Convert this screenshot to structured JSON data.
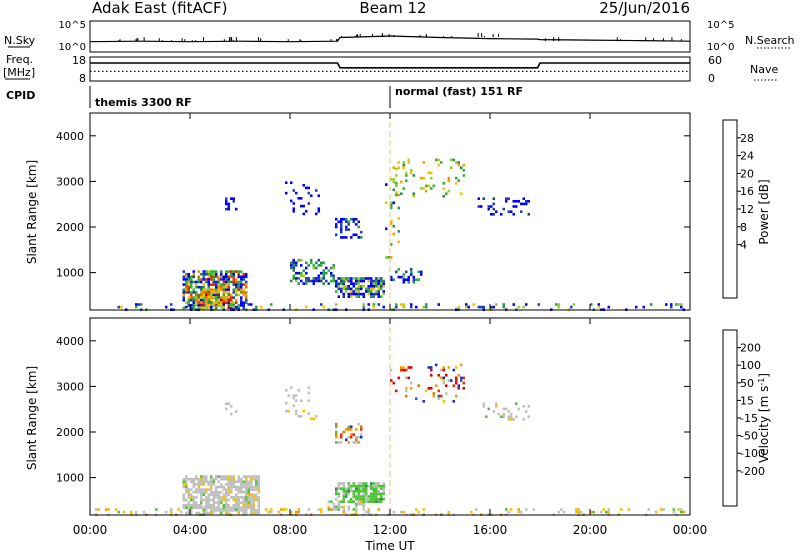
{
  "header": {
    "station": "Adak East (fitACF)",
    "beam": "Beam 12",
    "date": "25/Jun/2016"
  },
  "status_panels": {
    "nsky_label": "N.Sky",
    "nsky_ticks": [
      "10^5",
      "10^0"
    ],
    "nsearch_label": "N.Search",
    "nsearch_ticks": [
      "10^5",
      "10^0"
    ],
    "freq_label_line1": "Freq.",
    "freq_label_line2": "[MHz]",
    "freq_ticks": [
      "18",
      "8"
    ],
    "nave_label": "Nave",
    "nave_ticks": [
      "60",
      "0"
    ],
    "cpid_label": "CPID",
    "cpid_segments": [
      {
        "start_hour": 0,
        "text": "themis 3300 RF"
      },
      {
        "start_hour": 12,
        "text": "normal (fast) 151 RF"
      }
    ]
  },
  "time_axis": {
    "label": "Time UT",
    "ticks": [
      "00:00",
      "04:00",
      "08:00",
      "12:00",
      "16:00",
      "20:00",
      "00:00"
    ]
  },
  "power_colorbar": {
    "label": "Power [dB]",
    "ticks": [
      "28",
      "24",
      "20",
      "16",
      "12",
      "8",
      "4"
    ],
    "colors": [
      "#0000ff",
      "#1f3fa8",
      "#2e8b57",
      "#2db52d",
      "#99cc33",
      "#f2c200",
      "#f59b00",
      "#f06400",
      "#e03000",
      "#cc0000"
    ]
  },
  "velocity_colorbar": {
    "label": "Velocity [m s^-1]",
    "ticks": [
      "200",
      "100",
      "50",
      "15",
      "-15",
      "-50",
      "-100",
      "-200"
    ],
    "colors": [
      "#1030c0",
      "#2060b0",
      "#2e8b57",
      "#4fc43a",
      "#c0c0c0",
      "#f2c200",
      "#f59b00",
      "#f07000",
      "#e03000",
      "#e00000"
    ]
  },
  "chart_data": [
    {
      "type": "line",
      "title": "Adak East (fitACF) Beam 12 25/Jun/2016",
      "ylabel": "N.Sky",
      "ylim_label": [
        "10^0",
        "10^5"
      ],
      "x": [
        0,
        2,
        4,
        6,
        8,
        9.9,
        10,
        12,
        14,
        16,
        17.9,
        18,
        20,
        22,
        24
      ],
      "series": [
        {
          "name": "N.Sky",
          "values": [
            1.6,
            1.7,
            1.6,
            1.7,
            1.6,
            1.7,
            2.4,
            2.7,
            2.4,
            2.2,
            2.1,
            2.0,
            1.9,
            1.8,
            1.7
          ]
        }
      ]
    },
    {
      "type": "line",
      "ylabel": "Freq. [MHz]",
      "ylim": [
        8,
        18
      ],
      "x": [
        0,
        9.9,
        10,
        17.9,
        18,
        24
      ],
      "series": [
        {
          "name": "Freq.",
          "values": [
            15.5,
            15.5,
            13.5,
            13.5,
            15.5,
            15.5
          ]
        },
        {
          "name": "Nave",
          "values": [
            12,
            12,
            12,
            12,
            12,
            12
          ]
        }
      ]
    },
    {
      "type": "heatmap",
      "ylabel": "Slant Range [km]",
      "xlabel": "",
      "xlim": [
        0,
        24
      ],
      "ylim": [
        180,
        4500
      ],
      "yticks": [
        "1000",
        "2000",
        "3000",
        "4000"
      ],
      "colorbar": "Power [dB]",
      "scatter_regions": [
        {
          "t0": 3.7,
          "t1": 6.2,
          "r0": 250,
          "r1": 1050,
          "density": 0.75,
          "seed": 11,
          "weights": [
            3,
            2,
            2,
            2,
            1,
            1,
            1,
            1,
            1,
            0
          ]
        },
        {
          "t0": 4.3,
          "t1": 5.6,
          "r0": 250,
          "r1": 600,
          "density": 0.7,
          "seed": 12,
          "weights": [
            0,
            0,
            1,
            1,
            2,
            2,
            2,
            1,
            1,
            1
          ]
        },
        {
          "t0": 9.8,
          "t1": 11.8,
          "r0": 450,
          "r1": 900,
          "density": 0.75,
          "seed": 13,
          "weights": [
            3,
            2,
            2,
            1,
            1,
            1,
            0,
            0,
            0,
            0
          ]
        },
        {
          "t0": 8.0,
          "t1": 9.8,
          "r0": 750,
          "r1": 1300,
          "density": 0.45,
          "seed": 14,
          "weights": [
            3,
            2,
            2,
            1,
            1,
            0,
            0,
            0,
            0,
            0
          ]
        },
        {
          "t0": 12.0,
          "t1": 13.3,
          "r0": 800,
          "r1": 1100,
          "density": 0.3,
          "seed": 15,
          "weights": [
            3,
            1,
            1,
            1,
            1,
            0,
            0,
            0,
            0,
            0
          ]
        },
        {
          "t0": 0.2,
          "t1": 23.8,
          "r0": 180,
          "r1": 330,
          "density": 0.2,
          "seed": 16,
          "weights": [
            3,
            2,
            1,
            1,
            1,
            1,
            0,
            0,
            0,
            0
          ]
        },
        {
          "t0": 9.8,
          "t1": 10.9,
          "r0": 1800,
          "r1": 2200,
          "density": 0.35,
          "seed": 17,
          "weights": [
            3,
            2,
            1,
            1,
            0,
            0,
            0,
            0,
            0,
            0
          ]
        },
        {
          "t0": 5.4,
          "t1": 5.9,
          "r0": 2400,
          "r1": 2650,
          "density": 0.45,
          "seed": 18,
          "weights": [
            3,
            1,
            0,
            0,
            0,
            0,
            0,
            0,
            0,
            0
          ]
        },
        {
          "t0": 7.8,
          "t1": 9.2,
          "r0": 2300,
          "r1": 3000,
          "density": 0.18,
          "seed": 19,
          "weights": [
            3,
            1,
            0,
            0,
            0,
            0,
            0,
            0,
            0,
            0
          ]
        },
        {
          "t0": 15.5,
          "t1": 17.6,
          "r0": 2300,
          "r1": 2650,
          "density": 0.25,
          "seed": 20,
          "weights": [
            3,
            2,
            0,
            0,
            0,
            0,
            0,
            0,
            0,
            0
          ]
        },
        {
          "t0": 12.0,
          "t1": 15.0,
          "r0": 2700,
          "r1": 3500,
          "density": 0.12,
          "seed": 21,
          "weights": [
            0,
            0,
            1,
            2,
            1,
            2,
            1,
            0,
            0,
            0
          ]
        },
        {
          "t0": 11.8,
          "t1": 12.5,
          "r0": 1300,
          "r1": 3300,
          "density": 0.1,
          "seed": 22,
          "weights": [
            1,
            0,
            1,
            1,
            1,
            2,
            1,
            0,
            0,
            0
          ]
        }
      ]
    },
    {
      "type": "heatmap",
      "ylabel": "Slant Range [km]",
      "xlabel": "Time UT",
      "xlim": [
        0,
        24
      ],
      "ylim": [
        180,
        4500
      ],
      "yticks": [
        "1000",
        "2000",
        "3000",
        "4000"
      ],
      "colorbar": "Velocity [m s^-1]",
      "scatter_regions": [
        {
          "t0": 3.7,
          "t1": 6.8,
          "r0": 250,
          "r1": 1050,
          "density": 0.75,
          "seed": 31,
          "weights": [
            0,
            0,
            0,
            1,
            9,
            1,
            0,
            0,
            0,
            0
          ]
        },
        {
          "t0": 9.8,
          "t1": 11.8,
          "r0": 450,
          "r1": 900,
          "density": 0.75,
          "seed": 32,
          "weights": [
            0,
            0,
            1,
            8,
            3,
            0,
            0,
            0,
            0,
            0
          ]
        },
        {
          "t0": 9.5,
          "t1": 11.0,
          "r0": 300,
          "r1": 500,
          "density": 0.4,
          "seed": 33,
          "weights": [
            0,
            0,
            0,
            2,
            6,
            1,
            0,
            0,
            0,
            0
          ]
        },
        {
          "t0": 0.2,
          "t1": 23.8,
          "r0": 180,
          "r1": 330,
          "density": 0.2,
          "seed": 34,
          "weights": [
            0,
            0,
            0,
            1,
            3,
            3,
            1,
            0,
            0,
            0
          ]
        },
        {
          "t0": 9.8,
          "t1": 10.9,
          "r0": 1800,
          "r1": 2200,
          "density": 0.35,
          "seed": 35,
          "weights": [
            1,
            0,
            0,
            1,
            3,
            0,
            1,
            1,
            1,
            0
          ]
        },
        {
          "t0": 5.4,
          "t1": 5.9,
          "r0": 2400,
          "r1": 2650,
          "density": 0.35,
          "seed": 36,
          "weights": [
            0,
            0,
            0,
            0,
            5,
            0,
            0,
            0,
            0,
            0
          ]
        },
        {
          "t0": 7.8,
          "t1": 9.2,
          "r0": 2300,
          "r1": 3000,
          "density": 0.15,
          "seed": 37,
          "weights": [
            0,
            0,
            0,
            0,
            5,
            1,
            0,
            0,
            0,
            0
          ]
        },
        {
          "t0": 12.0,
          "t1": 15.0,
          "r0": 2700,
          "r1": 3500,
          "density": 0.12,
          "seed": 38,
          "weights": [
            2,
            1,
            0,
            0,
            2,
            1,
            1,
            1,
            1,
            2
          ]
        },
        {
          "t0": 15.5,
          "t1": 17.6,
          "r0": 2300,
          "r1": 2650,
          "density": 0.2,
          "seed": 39,
          "weights": [
            0,
            0,
            0,
            1,
            4,
            1,
            0,
            0,
            0,
            0
          ]
        }
      ]
    }
  ]
}
